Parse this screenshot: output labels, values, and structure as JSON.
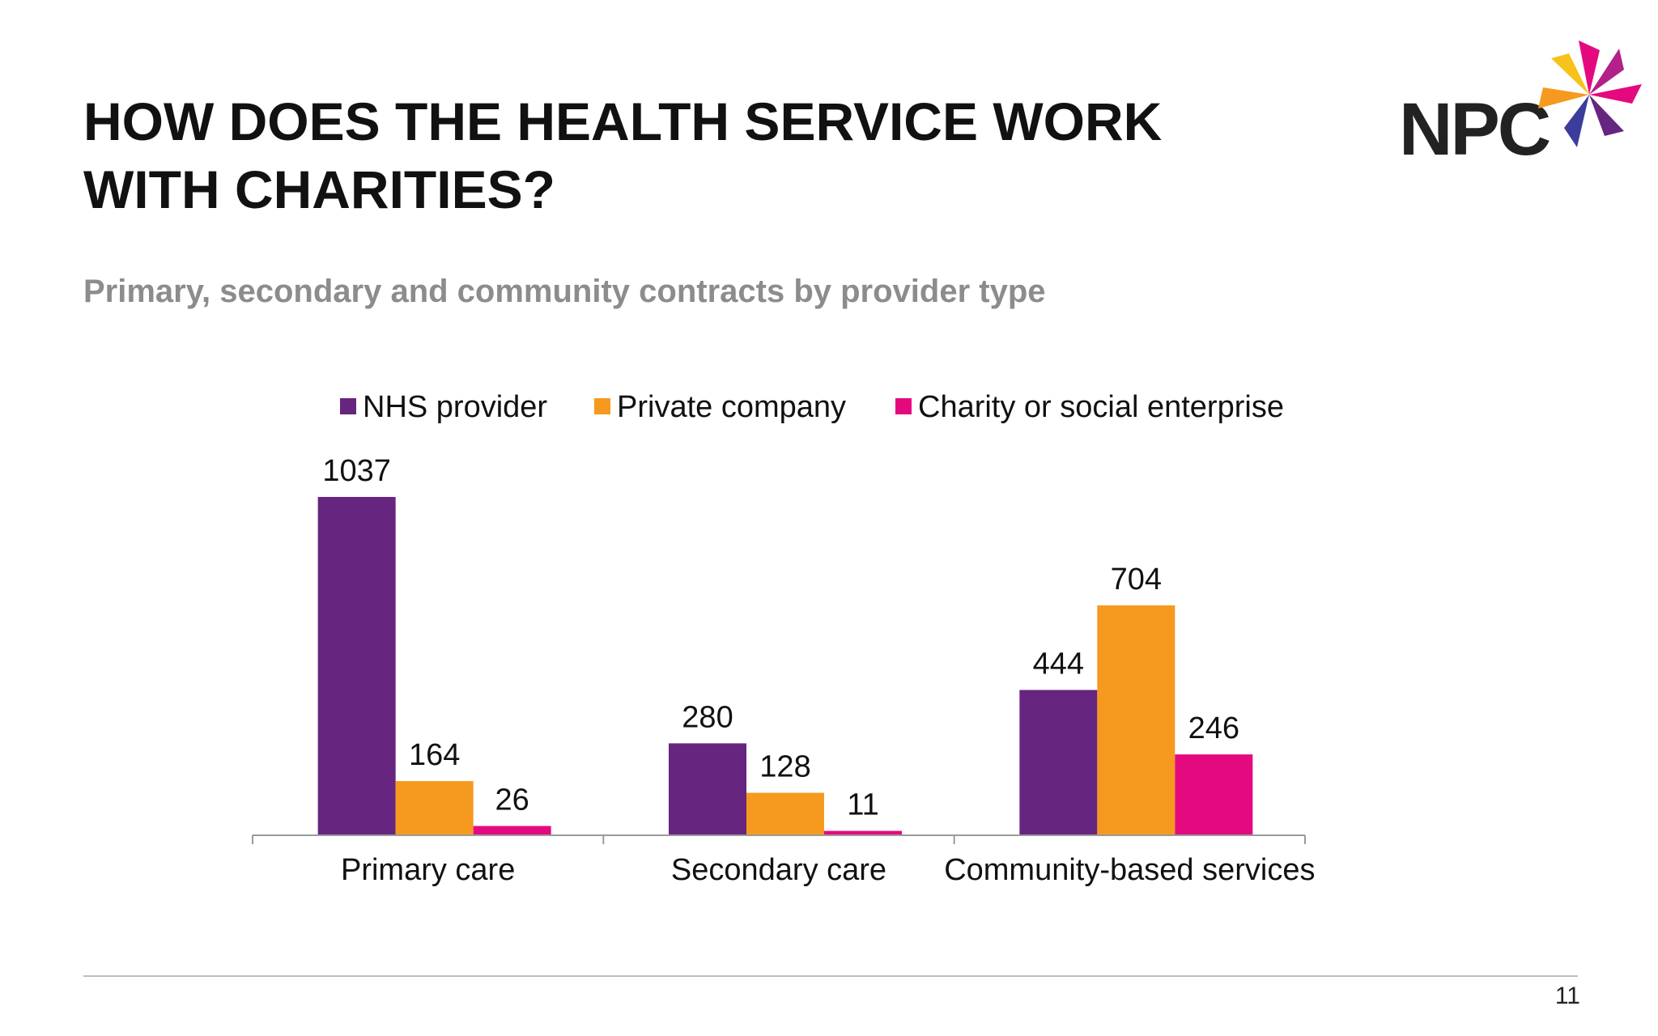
{
  "slide": {
    "title_lines": [
      "HOW DOES THE HEALTH SERVICE WORK",
      "WITH CHARITIES?"
    ],
    "subtitle": "Primary, secondary and community contracts by provider type",
    "logo_text": "NPC",
    "page_number": "11"
  },
  "chart_data": {
    "type": "bar",
    "categories": [
      "Primary care",
      "Secondary care",
      "Community-based services"
    ],
    "series": [
      {
        "name": "NHS provider",
        "values": [
          1037,
          280,
          444
        ],
        "color": "#66257f"
      },
      {
        "name": "Private company",
        "values": [
          164,
          128,
          704
        ],
        "color": "#f59a1e"
      },
      {
        "name": "Charity or social enterprise",
        "values": [
          26,
          11,
          246
        ],
        "color": "#e5097f"
      }
    ],
    "ylim": [
      0,
      1037
    ],
    "grid": false,
    "legend": "top-center",
    "data_labels": true
  }
}
